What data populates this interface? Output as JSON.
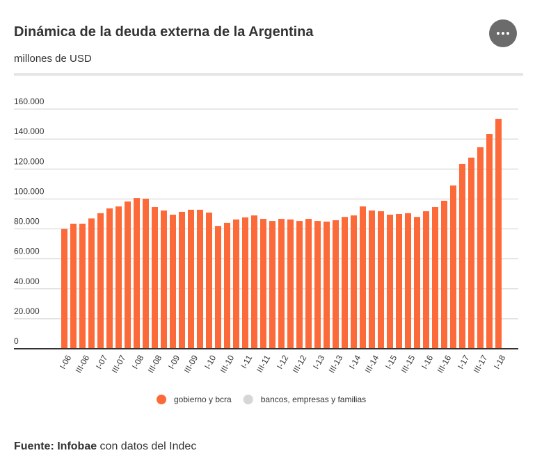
{
  "chart_data": {
    "type": "bar",
    "title": "Dinámica de la deuda externa de la Argentina",
    "subtitle": "millones de USD",
    "source_bold": "Fuente: Infobae",
    "source": " con datos del Indec",
    "categories": [
      "I-06",
      null,
      "III-06",
      null,
      "I-07",
      null,
      "III-07",
      null,
      "I-08",
      null,
      "III-08",
      null,
      "I-09",
      null,
      "III-09",
      null,
      "I-10",
      null,
      "III-10",
      null,
      "I-11",
      null,
      "III-11",
      null,
      "I-12",
      null,
      "III-12",
      null,
      "I-13",
      null,
      "III-13",
      null,
      "I-14",
      null,
      "III-14",
      null,
      "I-15",
      null,
      "III-15",
      null,
      "I-16",
      null,
      "III-16",
      null,
      "I-17",
      null,
      "III-17",
      null,
      "I-18"
    ],
    "series": [
      {
        "name": "gobierno y bcra",
        "color": "#fd6a3a",
        "values": [
          80000,
          83500,
          83500,
          87000,
          90500,
          93700,
          95000,
          98300,
          100600,
          100200,
          94600,
          92300,
          89500,
          91400,
          92800,
          92800,
          90900,
          82000,
          84000,
          86300,
          87700,
          89000,
          86700,
          85300,
          86700,
          86300,
          85300,
          86700,
          85300,
          84900,
          85800,
          88000,
          89000,
          95000,
          92300,
          91800,
          89500,
          90000,
          90500,
          88000,
          91800,
          94600,
          98800,
          109000,
          123400,
          127600,
          134500,
          143300,
          153500
        ]
      },
      {
        "name": "bancos, empresas y familias",
        "color": "#d6d6d6",
        "visible": false
      }
    ],
    "ylim": [
      0,
      160000
    ],
    "yticks": [
      0,
      {
        "value": 20000,
        "label": "20.000"
      },
      {
        "value": 40000,
        "label": "40.000"
      },
      {
        "value": 60000,
        "label": "60.000"
      },
      {
        "value": 80000,
        "label": "80.000"
      },
      {
        "value": 100000,
        "label": "100.000"
      },
      {
        "value": 120000,
        "label": "120.000"
      },
      {
        "value": 140000,
        "label": "140.000"
      },
      {
        "value": 160000,
        "label": "160.000"
      }
    ],
    "grid": true
  }
}
